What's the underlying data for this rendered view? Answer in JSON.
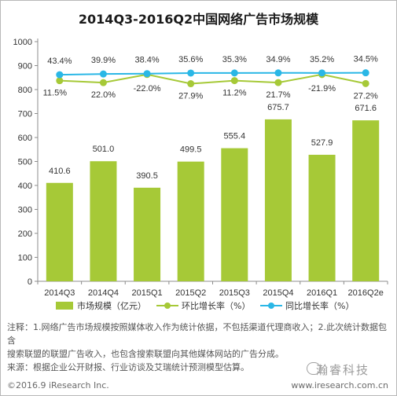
{
  "chart_data": {
    "type": "bar",
    "title": "2014Q3-2016Q2中国网络广告市场规模",
    "categories": [
      "2014Q3",
      "2014Q4",
      "2015Q1",
      "2015Q2",
      "2015Q3",
      "2015Q4",
      "2016Q1",
      "2016Q2e"
    ],
    "ylim": [
      0,
      1000
    ],
    "yticks": [
      0,
      100,
      200,
      300,
      400,
      500,
      600,
      700,
      800,
      900,
      1000
    ],
    "grid": false,
    "legend_position": "bottom",
    "series": [
      {
        "name": "市场规模（亿元）",
        "type": "bar",
        "color": "#a6c937",
        "values": [
          410.6,
          501.0,
          390.5,
          499.5,
          555.4,
          675.7,
          527.9,
          671.6
        ],
        "labels": [
          "410.6",
          "501.0",
          "390.5",
          "499.5",
          "555.4",
          "675.7",
          "527.9",
          "671.6"
        ]
      },
      {
        "name": "环比增长率（%）",
        "type": "line",
        "color": "#a6c937",
        "values": [
          11.5,
          22.0,
          -22.0,
          27.9,
          11.2,
          21.7,
          -21.9,
          27.2
        ],
        "labels": [
          "11.5%",
          "22.0%",
          "-22.0%",
          "27.9%",
          "11.2%",
          "21.7%",
          "-21.9%",
          "27.2%"
        ]
      },
      {
        "name": "同比增长率（%）",
        "type": "line",
        "color": "#2ab7e6",
        "values": [
          43.4,
          39.9,
          38.4,
          35.6,
          35.3,
          34.9,
          35.2,
          34.5
        ],
        "labels": [
          "43.4%",
          "39.9%",
          "38.4%",
          "35.6%",
          "35.3%",
          "34.9%",
          "35.2%",
          "34.5%"
        ]
      }
    ]
  },
  "notes": {
    "line1": "注释：1.网络广告市场规模按照媒体收入作为统计依据，不包括渠道代理商收入；2.此次统计数据包含",
    "line2": "搜索联盟的联盟广告收入，也包含搜索联盟向其他媒体网站的广告分成。",
    "line3": "来源：根据企业公开财报、行业访谈及艾瑞统计预测模型估算。"
  },
  "footer": {
    "copyright": "©2016.9 iResearch Inc.",
    "website": "www.iresearch.com.cn",
    "watermark": "瀚睿科技"
  }
}
